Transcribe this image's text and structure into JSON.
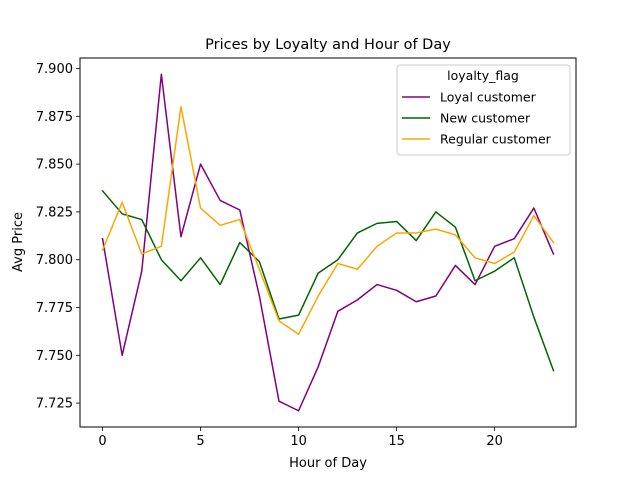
{
  "chart_data": {
    "type": "line",
    "title": "Prices by Loyalty and Hour of Day",
    "xlabel": "Hour of Day",
    "ylabel": "Avg Price",
    "xlim": [
      -1.15,
      24.15
    ],
    "ylim": [
      7.7125,
      7.9055
    ],
    "xticks": [
      0,
      5,
      10,
      15,
      20
    ],
    "yticks": [
      7.725,
      7.75,
      7.775,
      7.8,
      7.825,
      7.85,
      7.875,
      7.9
    ],
    "ytick_labels": [
      "7.725",
      "7.750",
      "7.775",
      "7.800",
      "7.825",
      "7.850",
      "7.875",
      "7.900"
    ],
    "grid": false,
    "legend": {
      "title": "loyalty_flag",
      "placement": "top-right"
    },
    "x": [
      0,
      1,
      2,
      3,
      4,
      5,
      6,
      7,
      8,
      9,
      10,
      11,
      12,
      13,
      14,
      15,
      16,
      17,
      18,
      19,
      20,
      21,
      22,
      23
    ],
    "series": [
      {
        "name": "Loyal customer",
        "color": "#800080",
        "values": [
          7.811,
          7.75,
          7.794,
          7.897,
          7.812,
          7.85,
          7.831,
          7.826,
          7.781,
          7.726,
          7.721,
          7.744,
          7.773,
          7.779,
          7.787,
          7.784,
          7.778,
          7.781,
          7.797,
          7.787,
          7.807,
          7.811,
          7.827,
          7.803
        ]
      },
      {
        "name": "New customer",
        "color": "#006400",
        "values": [
          7.836,
          7.824,
          7.821,
          7.8,
          7.789,
          7.801,
          7.787,
          7.809,
          7.799,
          7.769,
          7.771,
          7.793,
          7.8,
          7.814,
          7.819,
          7.82,
          7.81,
          7.825,
          7.817,
          7.789,
          7.794,
          7.801,
          7.77,
          7.742
        ]
      },
      {
        "name": "Regular customer",
        "color": "#FFA500",
        "values": [
          7.805,
          7.83,
          7.803,
          7.807,
          7.88,
          7.827,
          7.818,
          7.821,
          7.795,
          7.768,
          7.761,
          7.781,
          7.798,
          7.795,
          7.807,
          7.814,
          7.814,
          7.816,
          7.813,
          7.801,
          7.798,
          7.804,
          7.823,
          7.809
        ]
      }
    ]
  }
}
